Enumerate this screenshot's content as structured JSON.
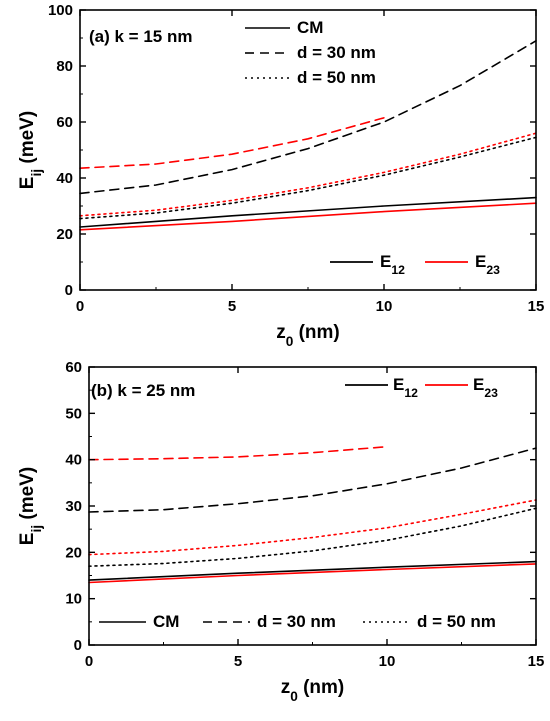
{
  "colors": {
    "E12": "#000000",
    "E23": "#ff0000"
  },
  "line_styles": {
    "CM": "solid",
    "d = 30 nm": "dashed",
    "d = 50 nm": "dotted"
  },
  "chart_data": [
    {
      "type": "line",
      "panel": "(a)",
      "annotation": "k = 15 nm",
      "xlabel": "z0 (nm)",
      "ylabel": "Eij (meV)",
      "xlim": [
        0,
        15
      ],
      "ylim": [
        0,
        100
      ],
      "xticks": [
        "0",
        "5",
        "10",
        "15"
      ],
      "yticks": [
        "0",
        "20",
        "40",
        "60",
        "80",
        "100"
      ],
      "legend_styles": [
        "CM",
        "d = 30 nm",
        "d = 50 nm"
      ],
      "legend_colors": [
        "E12",
        "E23"
      ],
      "series": [
        {
          "style": "CM",
          "color": "E12",
          "x": [
            0,
            5,
            10,
            15
          ],
          "y": [
            22.5,
            26.5,
            30,
            33
          ]
        },
        {
          "style": "CM",
          "color": "E23",
          "x": [
            0,
            5,
            10,
            15
          ],
          "y": [
            21.5,
            24.5,
            28,
            31
          ]
        },
        {
          "style": "d = 30 nm",
          "color": "E12",
          "x": [
            0,
            2.5,
            5,
            7.5,
            10,
            12.5,
            15
          ],
          "y": [
            34.5,
            37.5,
            43,
            50.5,
            60,
            73,
            89
          ]
        },
        {
          "style": "d = 30 nm",
          "color": "E23",
          "x": [
            0,
            2.5,
            5,
            7.5,
            10
          ],
          "y": [
            43.5,
            45,
            48.5,
            54,
            61.5
          ]
        },
        {
          "style": "d = 50 nm",
          "color": "E12",
          "x": [
            0,
            2.5,
            5,
            7.5,
            10,
            12.5,
            15
          ],
          "y": [
            25.5,
            27.5,
            31,
            35.5,
            41,
            47.5,
            54.5
          ]
        },
        {
          "style": "d = 50 nm",
          "color": "E23",
          "x": [
            0,
            2.5,
            5,
            7.5,
            10,
            12.5,
            15
          ],
          "y": [
            26.5,
            28.5,
            32,
            36.5,
            42,
            48.5,
            56
          ]
        }
      ]
    },
    {
      "type": "line",
      "panel": "(b)",
      "annotation": "k = 25 nm",
      "xlabel": "z0 (nm)",
      "ylabel": "Eij (meV)",
      "xlim": [
        0,
        15
      ],
      "ylim": [
        0,
        60
      ],
      "xticks": [
        "0",
        "5",
        "10",
        "15"
      ],
      "yticks": [
        "0",
        "10",
        "20",
        "30",
        "40",
        "50",
        "60"
      ],
      "legend_styles": [
        "CM",
        "d = 30 nm",
        "d = 50 nm"
      ],
      "legend_colors": [
        "E12",
        "E23"
      ],
      "series": [
        {
          "style": "CM",
          "color": "E12",
          "x": [
            0,
            5,
            10,
            15
          ],
          "y": [
            14,
            15.5,
            16.8,
            18
          ]
        },
        {
          "style": "CM",
          "color": "E23",
          "x": [
            0,
            5,
            10,
            15
          ],
          "y": [
            13.5,
            15,
            16.3,
            17.5
          ]
        },
        {
          "style": "d = 30 nm",
          "color": "E12",
          "x": [
            0,
            2.5,
            5,
            7.5,
            10,
            12.5,
            15
          ],
          "y": [
            28.7,
            29.2,
            30.5,
            32.2,
            34.8,
            38.2,
            42.5
          ]
        },
        {
          "style": "d = 30 nm",
          "color": "E23",
          "x": [
            0,
            2.5,
            5,
            7.5,
            10
          ],
          "y": [
            40,
            40.2,
            40.6,
            41.5,
            42.8
          ]
        },
        {
          "style": "d = 50 nm",
          "color": "E12",
          "x": [
            0,
            2.5,
            5,
            7.5,
            10,
            12.5,
            15
          ],
          "y": [
            17,
            17.6,
            18.7,
            20.3,
            22.6,
            25.7,
            29.5
          ]
        },
        {
          "style": "d = 50 nm",
          "color": "E23",
          "x": [
            0,
            2.5,
            5,
            7.5,
            10,
            12.5,
            15
          ],
          "y": [
            19.5,
            20.2,
            21.5,
            23.2,
            25.3,
            28.2,
            31.3
          ]
        }
      ]
    }
  ]
}
